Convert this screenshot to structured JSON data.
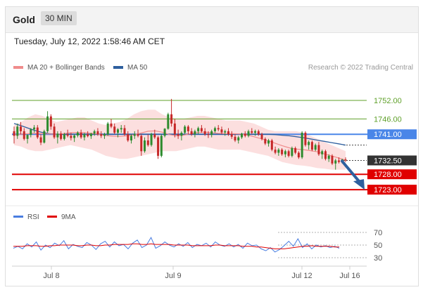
{
  "header": {
    "title": "Gold",
    "timeframe": "30 MIN"
  },
  "timestamp": "Tuesday, July 12, 2022 1:58:46 AM CET",
  "legend": {
    "ma20_label": "MA 20 + Bollinger Bands",
    "ma50_label": "MA 50",
    "credit": "Research © 2022 Trading Central"
  },
  "rsi_legend": {
    "rsi_label": "RSI",
    "ma_label": "9MA"
  },
  "colors": {
    "ma20": "#f08c8c",
    "ma50": "#2e5f9e",
    "up": "#2e8b2e",
    "down": "#c62828",
    "bands": "#fbd9d9",
    "support": "#e00000",
    "resistance": "#5fa02a",
    "pivot": "#4a86e8",
    "current": "#333333",
    "arrow": "#2e5f9e",
    "rsi": "#4a7de0",
    "rsi_ma": "#e00000"
  },
  "chart_data": [
    {
      "type": "candlestick",
      "title": "Gold",
      "ylim": [
        1718,
        1760
      ],
      "x_ticks": [
        "Jul 8",
        "Jul 9",
        "Jul 12",
        "Jul 16"
      ],
      "levels": [
        {
          "value": 1752.0,
          "label": "1752.00",
          "kind": "resistance"
        },
        {
          "value": 1746.0,
          "label": "1746.00",
          "kind": "resistance"
        },
        {
          "value": 1741.0,
          "label": "1741.00",
          "kind": "pivot"
        },
        {
          "value": 1732.5,
          "label": "1732.50",
          "kind": "current"
        },
        {
          "value": 1728.0,
          "label": "1728.00",
          "kind": "support"
        },
        {
          "value": 1723.0,
          "label": "1723.00",
          "kind": "support"
        }
      ],
      "forecast_arrow": {
        "from": 1732.5,
        "to": 1723.0
      },
      "candles": [
        [
          1742.0,
          1743.5,
          1738.0,
          1740.5
        ],
        [
          1740.5,
          1744.5,
          1739.5,
          1743.5
        ],
        [
          1743.5,
          1745.0,
          1741.0,
          1742.0
        ],
        [
          1742.0,
          1743.0,
          1739.0,
          1739.5
        ],
        [
          1739.5,
          1741.0,
          1738.0,
          1740.8
        ],
        [
          1740.8,
          1743.0,
          1740.0,
          1742.6
        ],
        [
          1742.6,
          1744.0,
          1741.5,
          1743.2
        ],
        [
          1743.2,
          1744.0,
          1739.5,
          1740.0
        ],
        [
          1740.0,
          1741.0,
          1737.5,
          1738.3
        ],
        [
          1738.3,
          1742.5,
          1738.0,
          1742.0
        ],
        [
          1742.0,
          1748.5,
          1741.5,
          1746.8
        ],
        [
          1746.8,
          1747.5,
          1742.5,
          1743.5
        ],
        [
          1743.5,
          1744.5,
          1739.5,
          1740.0
        ],
        [
          1740.0,
          1742.0,
          1738.0,
          1741.2
        ],
        [
          1741.2,
          1742.0,
          1739.0,
          1739.5
        ],
        [
          1739.5,
          1741.5,
          1739.0,
          1741.0
        ],
        [
          1741.0,
          1742.5,
          1740.0,
          1740.5
        ],
        [
          1740.5,
          1741.5,
          1739.0,
          1739.8
        ],
        [
          1739.8,
          1741.0,
          1738.5,
          1740.6
        ],
        [
          1740.6,
          1742.0,
          1740.0,
          1741.5
        ],
        [
          1741.5,
          1742.5,
          1739.5,
          1740.0
        ],
        [
          1740.0,
          1741.5,
          1739.0,
          1741.0
        ],
        [
          1741.0,
          1742.0,
          1740.0,
          1740.4
        ],
        [
          1740.4,
          1741.5,
          1739.5,
          1741.2
        ],
        [
          1741.2,
          1742.5,
          1740.5,
          1742.0
        ],
        [
          1742.0,
          1743.0,
          1740.5,
          1741.0
        ],
        [
          1741.0,
          1742.0,
          1739.8,
          1740.5
        ],
        [
          1740.5,
          1741.5,
          1739.5,
          1741.0
        ],
        [
          1741.0,
          1745.0,
          1740.5,
          1744.5
        ],
        [
          1744.5,
          1746.0,
          1743.0,
          1743.5
        ],
        [
          1743.5,
          1744.5,
          1741.0,
          1741.5
        ],
        [
          1741.5,
          1743.0,
          1740.0,
          1742.6
        ],
        [
          1742.6,
          1744.0,
          1741.5,
          1743.0
        ],
        [
          1743.0,
          1744.0,
          1740.5,
          1741.0
        ],
        [
          1741.0,
          1742.0,
          1738.5,
          1739.0
        ],
        [
          1739.0,
          1741.0,
          1738.0,
          1740.5
        ],
        [
          1740.5,
          1742.0,
          1739.5,
          1741.0
        ],
        [
          1741.0,
          1742.5,
          1740.0,
          1740.5
        ],
        [
          1740.5,
          1741.0,
          1734.0,
          1735.5
        ],
        [
          1735.5,
          1740.0,
          1735.0,
          1739.0
        ],
        [
          1739.0,
          1741.0,
          1737.0,
          1737.5
        ],
        [
          1737.5,
          1741.5,
          1737.0,
          1741.0
        ],
        [
          1741.0,
          1742.5,
          1739.5,
          1740.0
        ],
        [
          1740.0,
          1740.5,
          1733.0,
          1734.0
        ],
        [
          1734.0,
          1741.0,
          1733.5,
          1740.5
        ],
        [
          1740.5,
          1743.0,
          1740.0,
          1742.8
        ],
        [
          1742.8,
          1748.0,
          1742.5,
          1747.5
        ],
        [
          1747.5,
          1752.5,
          1743.5,
          1744.5
        ],
        [
          1744.5,
          1746.0,
          1740.0,
          1741.0
        ],
        [
          1741.0,
          1742.5,
          1739.5,
          1740.5
        ],
        [
          1740.5,
          1742.0,
          1739.0,
          1741.5
        ],
        [
          1741.5,
          1744.0,
          1741.0,
          1743.5
        ],
        [
          1743.5,
          1744.0,
          1741.0,
          1742.0
        ],
        [
          1742.0,
          1743.0,
          1740.5,
          1741.0
        ],
        [
          1741.0,
          1742.5,
          1740.0,
          1742.0
        ],
        [
          1742.0,
          1743.5,
          1741.0,
          1743.0
        ],
        [
          1743.0,
          1744.0,
          1741.5,
          1742.0
        ],
        [
          1742.0,
          1743.0,
          1740.5,
          1741.0
        ],
        [
          1741.0,
          1742.0,
          1739.8,
          1740.8
        ],
        [
          1740.8,
          1742.5,
          1740.0,
          1742.0
        ],
        [
          1742.0,
          1743.5,
          1741.5,
          1743.0
        ],
        [
          1743.0,
          1744.0,
          1742.0,
          1742.6
        ],
        [
          1742.6,
          1743.5,
          1741.0,
          1741.6
        ],
        [
          1741.6,
          1742.5,
          1740.5,
          1742.0
        ],
        [
          1742.0,
          1743.0,
          1740.5,
          1741.0
        ],
        [
          1741.0,
          1742.0,
          1739.5,
          1740.2
        ],
        [
          1740.2,
          1741.0,
          1738.5,
          1739.0
        ],
        [
          1739.0,
          1740.5,
          1738.0,
          1740.0
        ],
        [
          1740.0,
          1741.5,
          1739.5,
          1741.2
        ],
        [
          1741.2,
          1742.0,
          1740.0,
          1740.5
        ],
        [
          1740.5,
          1742.5,
          1740.0,
          1742.0
        ],
        [
          1742.0,
          1743.0,
          1741.0,
          1741.5
        ],
        [
          1741.5,
          1742.5,
          1740.5,
          1742.0
        ],
        [
          1742.0,
          1742.5,
          1740.5,
          1741.0
        ],
        [
          1741.0,
          1741.5,
          1739.0,
          1739.5
        ],
        [
          1739.5,
          1740.0,
          1737.5,
          1738.0
        ],
        [
          1738.0,
          1739.5,
          1737.0,
          1739.0
        ],
        [
          1739.0,
          1739.5,
          1735.5,
          1736.0
        ],
        [
          1736.0,
          1737.0,
          1734.5,
          1735.0
        ],
        [
          1735.0,
          1736.5,
          1734.0,
          1736.0
        ],
        [
          1736.0,
          1736.5,
          1734.0,
          1734.5
        ],
        [
          1734.5,
          1736.0,
          1733.5,
          1735.5
        ],
        [
          1735.5,
          1736.0,
          1733.5,
          1734.0
        ],
        [
          1734.0,
          1737.0,
          1733.5,
          1736.5
        ],
        [
          1736.5,
          1737.0,
          1734.5,
          1735.0
        ],
        [
          1735.0,
          1735.5,
          1733.0,
          1733.5
        ],
        [
          1733.5,
          1742.0,
          1733.0,
          1741.5
        ],
        [
          1741.5,
          1742.0,
          1737.0,
          1737.5
        ],
        [
          1737.5,
          1739.0,
          1736.0,
          1738.5
        ],
        [
          1738.5,
          1739.0,
          1735.5,
          1736.0
        ],
        [
          1736.0,
          1738.0,
          1735.5,
          1737.5
        ],
        [
          1737.5,
          1738.5,
          1734.0,
          1734.5
        ],
        [
          1734.5,
          1736.0,
          1733.0,
          1735.5
        ],
        [
          1735.5,
          1736.0,
          1732.5,
          1733.0
        ],
        [
          1733.0,
          1734.5,
          1732.0,
          1734.0
        ],
        [
          1734.0,
          1734.5,
          1731.0,
          1731.5
        ],
        [
          1731.5,
          1733.0,
          1729.5,
          1732.5
        ],
        [
          1732.5,
          1733.5,
          1731.5,
          1732.0
        ],
        [
          1732.0,
          1733.0,
          1731.5,
          1732.8
        ],
        [
          1732.8,
          1733.5,
          1732.0,
          1732.5
        ]
      ],
      "ma20": [
        1740.8,
        1741.0,
        1741.2,
        1741.3,
        1741.2,
        1741.1,
        1741.0,
        1741.2,
        1741.5,
        1741.6,
        1741.5,
        1741.3,
        1741.0,
        1740.6,
        1740.4,
        1740.3,
        1740.5,
        1740.8,
        1741.4,
        1742.0,
        1742.1,
        1741.7,
        1740.9,
        1740.5,
        1740.7,
        1741.2,
        1741.6,
        1741.7,
        1741.5,
        1741.3,
        1741.2,
        1741.2,
        1741.1,
        1740.8,
        1740.2,
        1739.6,
        1738.9,
        1738.1,
        1737.3,
        1736.6,
        1736.2,
        1736.0,
        1735.7,
        1735.3,
        1734.6,
        1734.0,
        1733.3,
        1732.6
      ],
      "ma50": [
        1744.5,
        1743.8,
        1743.0,
        1742.2,
        1741.6,
        1741.2,
        1741.0,
        1741.0,
        1741.0,
        1741.0,
        1741.0,
        1741.0,
        1741.0,
        1741.0,
        1741.0,
        1741.0,
        1741.0,
        1741.0,
        1741.0,
        1741.0,
        1741.0,
        1741.0,
        1741.0,
        1741.0,
        1741.0,
        1741.0,
        1741.0,
        1741.0,
        1741.0,
        1741.0,
        1741.0,
        1741.0,
        1741.0,
        1741.0,
        1741.0,
        1741.0,
        1741.0,
        1740.9,
        1740.7,
        1740.5,
        1740.2,
        1739.9,
        1739.5,
        1739.1,
        1738.7,
        1738.3,
        1737.9,
        1737.5
      ],
      "bollinger_upper": [
        1744.0,
        1745.0,
        1746.5,
        1747.5,
        1747.0,
        1746.0,
        1745.0,
        1745.5,
        1746.0,
        1746.5,
        1746.5,
        1745.5,
        1744.5,
        1744.0,
        1744.5,
        1745.0,
        1746.0,
        1747.5,
        1748.5,
        1749.0,
        1749.0,
        1747.5,
        1746.5,
        1746.0,
        1746.0,
        1746.5,
        1747.0,
        1747.0,
        1746.5,
        1746.0,
        1745.5,
        1745.5,
        1745.5,
        1745.0,
        1744.5,
        1743.5,
        1742.5,
        1742.0,
        1742.0,
        1742.0,
        1742.0,
        1741.5,
        1740.5,
        1739.5,
        1738.5,
        1737.5,
        1736.5,
        1735.5
      ],
      "bollinger_lower": [
        1737.5,
        1737.0,
        1736.0,
        1735.5,
        1735.5,
        1736.0,
        1736.5,
        1737.0,
        1737.5,
        1737.0,
        1736.5,
        1736.0,
        1735.0,
        1734.0,
        1733.5,
        1733.0,
        1733.0,
        1733.5,
        1734.0,
        1734.5,
        1735.0,
        1735.5,
        1735.5,
        1735.5,
        1736.0,
        1736.5,
        1737.0,
        1737.0,
        1736.5,
        1736.0,
        1736.0,
        1736.0,
        1736.0,
        1735.5,
        1735.0,
        1734.5,
        1734.0,
        1733.0,
        1732.0,
        1731.5,
        1731.0,
        1730.8,
        1730.5,
        1730.0,
        1729.8,
        1729.5,
        1729.5,
        1729.5
      ]
    },
    {
      "type": "line",
      "title": "RSI",
      "ylim": [
        20,
        80
      ],
      "y_ticks": [
        70,
        50,
        30
      ],
      "series": [
        {
          "name": "RSI",
          "values": [
            45,
            48,
            44,
            52,
            47,
            55,
            42,
            50,
            46,
            53,
            49,
            57,
            44,
            51,
            48,
            46,
            54,
            50,
            43,
            52,
            56,
            47,
            55,
            49,
            51,
            44,
            53,
            58,
            46,
            50,
            62,
            45,
            49,
            55,
            50,
            47,
            52,
            48,
            54,
            46,
            51,
            49,
            53,
            47,
            55,
            50,
            48,
            52,
            47,
            51,
            45,
            53,
            49,
            50,
            44,
            41,
            46,
            39,
            43,
            49,
            56,
            48,
            60,
            46,
            52,
            44,
            50,
            47,
            49,
            46,
            48,
            45
          ]
        },
        {
          "name": "9MA",
          "values": [
            48,
            48,
            48,
            49,
            49,
            49,
            48,
            48,
            49,
            49,
            50,
            50,
            50,
            50,
            49,
            49,
            50,
            50,
            49,
            49,
            50,
            50,
            51,
            51,
            51,
            51,
            52,
            52,
            51,
            51,
            52,
            51,
            51,
            51,
            51,
            50,
            50,
            50,
            50,
            49,
            49,
            49,
            49,
            49,
            50,
            50,
            49,
            49,
            49,
            49,
            48,
            48,
            48,
            47,
            47,
            46,
            45,
            44,
            44,
            44,
            45,
            46,
            47,
            48,
            48,
            49,
            48,
            48,
            48,
            48,
            47,
            47
          ]
        }
      ]
    }
  ]
}
